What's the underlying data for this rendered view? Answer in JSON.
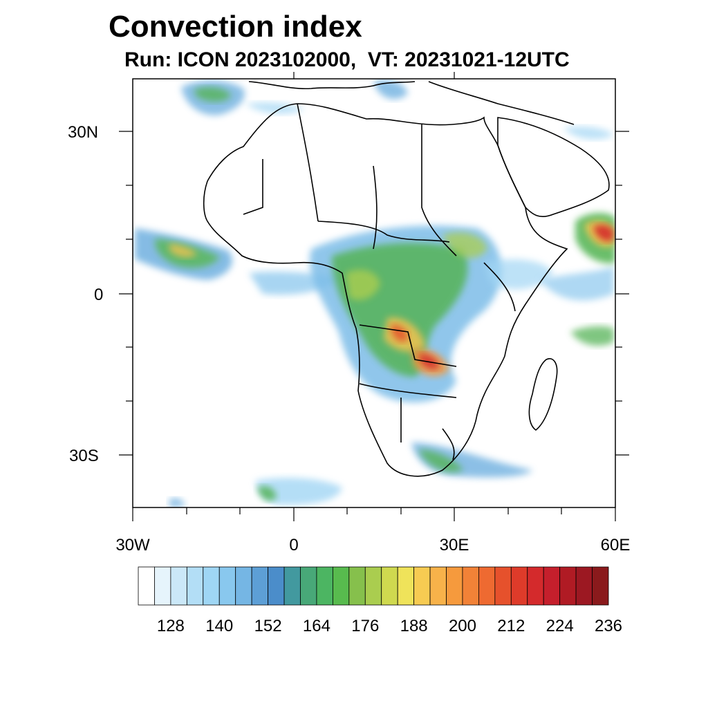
{
  "header": {
    "title": "Convection index",
    "subtitle": "Run: ICON 2023102000,  VT: 20231021-12UTC"
  },
  "axes": {
    "lat_labels": [
      "30N",
      "0",
      "30S"
    ],
    "lon_labels": [
      "30W",
      "0",
      "30E",
      "60E"
    ]
  },
  "colorbar": {
    "labels": [
      "128",
      "140",
      "152",
      "164",
      "176",
      "188",
      "200",
      "212",
      "224",
      "236"
    ],
    "colors": [
      "#ffffff",
      "#e6f4fc",
      "#cbe8f8",
      "#b3def6",
      "#9fd6f4",
      "#89c8ee",
      "#75b6e4",
      "#5d9fd6",
      "#4b8dca",
      "#42999f",
      "#48a878",
      "#4cb562",
      "#58bb4e",
      "#86c04c",
      "#aacd4f",
      "#cfd94f",
      "#efe35a",
      "#f7cb52",
      "#f7b24a",
      "#f69a3d",
      "#f28237",
      "#ee6a31",
      "#e6512c",
      "#de3b2a",
      "#d42a2c",
      "#c51f2c",
      "#b01b24",
      "#9c1822",
      "#8a1a1c"
    ]
  }
}
